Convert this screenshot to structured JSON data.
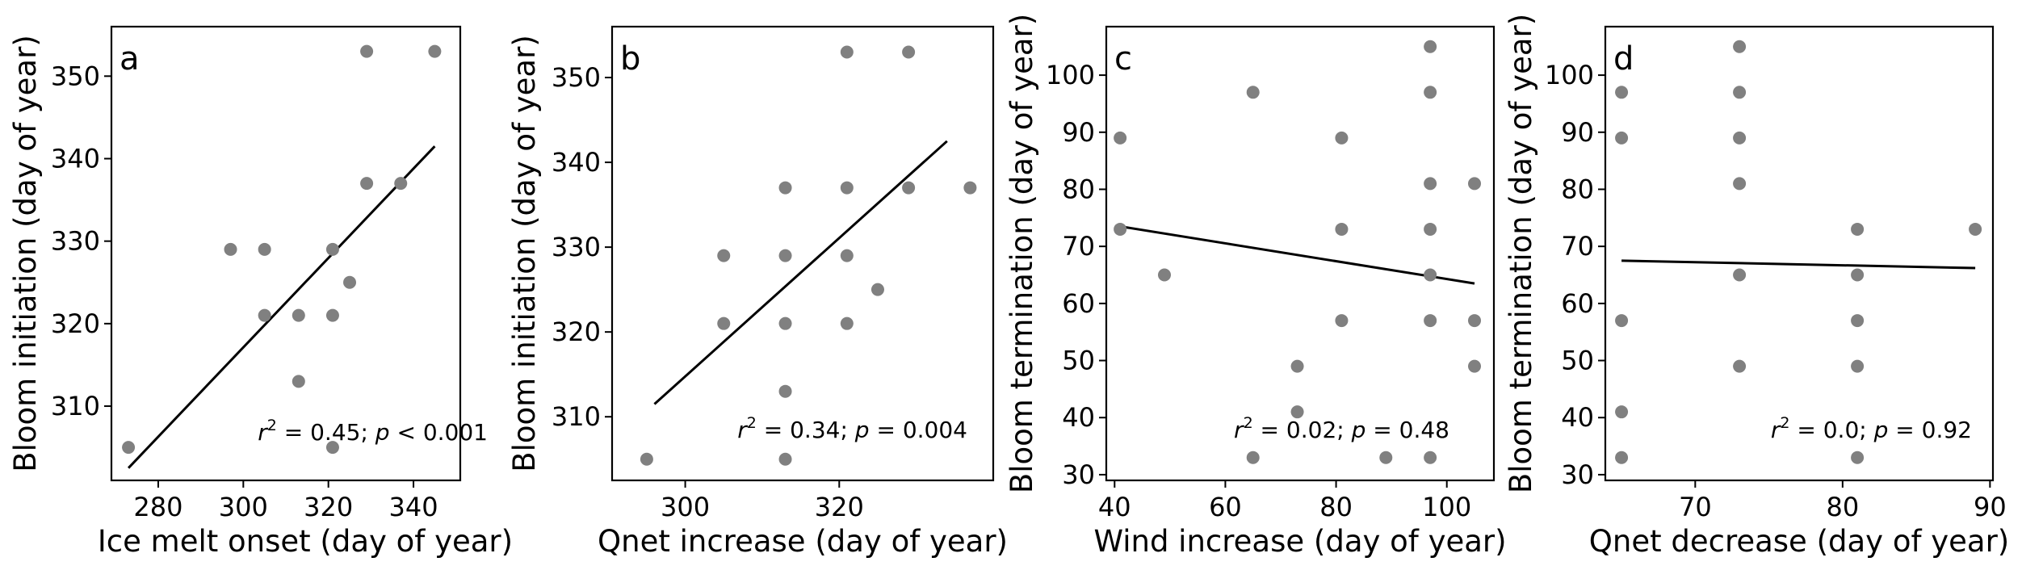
{
  "chart_data": [
    {
      "type": "scatter",
      "panel": "a",
      "xlabel": "Ice melt onset (day of year)",
      "ylabel": "Bloom initiation (day of year)",
      "xlim": [
        269,
        351
      ],
      "ylim": [
        301,
        356
      ],
      "xticks": [
        280,
        300,
        320,
        340
      ],
      "yticks": [
        310,
        320,
        330,
        340,
        350
      ],
      "points": [
        [
          273,
          305
        ],
        [
          297,
          329
        ],
        [
          305,
          329
        ],
        [
          305,
          321
        ],
        [
          313,
          321
        ],
        [
          313,
          313
        ],
        [
          321,
          329
        ],
        [
          321,
          321
        ],
        [
          321,
          305
        ],
        [
          325,
          325
        ],
        [
          329,
          353
        ],
        [
          329,
          337
        ],
        [
          337,
          337
        ],
        [
          345,
          353
        ]
      ],
      "fit": [
        [
          273,
          302.5
        ],
        [
          345,
          341.5
        ]
      ],
      "marker_color": "#808080",
      "fit_color": "#000000",
      "annotation": {
        "r2_prefix": "r",
        "r2_sup": "2",
        "r2_value": " = 0.45; ",
        "p_symbol": "p",
        "p_value": " < 0.001"
      }
    },
    {
      "type": "scatter",
      "panel": "b",
      "xlabel": "Qnet increase (day of year)",
      "ylabel": "Bloom initiation (day of year)",
      "xlim": [
        290.5,
        340
      ],
      "ylim": [
        302.5,
        356
      ],
      "xticks": [
        300,
        320
      ],
      "yticks": [
        310,
        320,
        330,
        340,
        350
      ],
      "points": [
        [
          295,
          305
        ],
        [
          305,
          329
        ],
        [
          305,
          321
        ],
        [
          313,
          337
        ],
        [
          313,
          329
        ],
        [
          313,
          321
        ],
        [
          313,
          313
        ],
        [
          313,
          305
        ],
        [
          321,
          353
        ],
        [
          321,
          337
        ],
        [
          321,
          329
        ],
        [
          321,
          321
        ],
        [
          325,
          325
        ],
        [
          329,
          353
        ],
        [
          329,
          337
        ],
        [
          337,
          337
        ]
      ],
      "fit": [
        [
          296,
          311.5
        ],
        [
          334,
          342.5
        ]
      ],
      "marker_color": "#808080",
      "fit_color": "#000000",
      "annotation": {
        "r2_prefix": "r",
        "r2_sup": "2",
        "r2_value": " = 0.34; ",
        "p_symbol": "p",
        "p_value": " = 0.004"
      }
    },
    {
      "type": "scatter",
      "panel": "c",
      "xlabel": "Wind increase (day of year)",
      "ylabel": "Bloom termination (day of year)",
      "xlim": [
        38.5,
        108.5
      ],
      "ylim": [
        29,
        108.5
      ],
      "xticks": [
        40,
        60,
        80,
        100
      ],
      "yticks": [
        30,
        40,
        50,
        60,
        70,
        80,
        90,
        100
      ],
      "points": [
        [
          41,
          89
        ],
        [
          41,
          73
        ],
        [
          49,
          65
        ],
        [
          65,
          97
        ],
        [
          65,
          33
        ],
        [
          73,
          49
        ],
        [
          73,
          41
        ],
        [
          81,
          89
        ],
        [
          81,
          73
        ],
        [
          81,
          57
        ],
        [
          89,
          33
        ],
        [
          97,
          105
        ],
        [
          97,
          97
        ],
        [
          97,
          81
        ],
        [
          97,
          73
        ],
        [
          97,
          65
        ],
        [
          97,
          57
        ],
        [
          97,
          33
        ],
        [
          105,
          81
        ],
        [
          105,
          57
        ],
        [
          105,
          49
        ]
      ],
      "fit": [
        [
          41,
          73.5
        ],
        [
          105,
          63.5
        ]
      ],
      "marker_color": "#808080",
      "fit_color": "#000000",
      "annotation": {
        "r2_prefix": "r",
        "r2_sup": "2",
        "r2_value": " = 0.02; ",
        "p_symbol": "p",
        "p_value": " = 0.48"
      }
    },
    {
      "type": "scatter",
      "panel": "d",
      "xlabel": "Qnet decrease (day of year)",
      "ylabel": "Bloom termination (day of year)",
      "xlim": [
        63.9,
        90.2
      ],
      "ylim": [
        29,
        108.5
      ],
      "xticks": [
        70,
        80,
        90
      ],
      "yticks": [
        30,
        40,
        50,
        60,
        70,
        80,
        90,
        100
      ],
      "points": [
        [
          65,
          97
        ],
        [
          65,
          89
        ],
        [
          65,
          57
        ],
        [
          65,
          41
        ],
        [
          65,
          33
        ],
        [
          73,
          105
        ],
        [
          73,
          97
        ],
        [
          73,
          89
        ],
        [
          73,
          81
        ],
        [
          73,
          65
        ],
        [
          73,
          49
        ],
        [
          81,
          73
        ],
        [
          81,
          65
        ],
        [
          81,
          57
        ],
        [
          81,
          49
        ],
        [
          81,
          33
        ],
        [
          89,
          73
        ]
      ],
      "fit": [
        [
          65,
          67.5
        ],
        [
          89,
          66.2
        ]
      ],
      "marker_color": "#808080",
      "fit_color": "#000000",
      "annotation": {
        "r2_prefix": "r",
        "r2_sup": "2",
        "r2_value": " = 0.0; ",
        "p_symbol": "p",
        "p_value": " = 0.92"
      }
    }
  ]
}
